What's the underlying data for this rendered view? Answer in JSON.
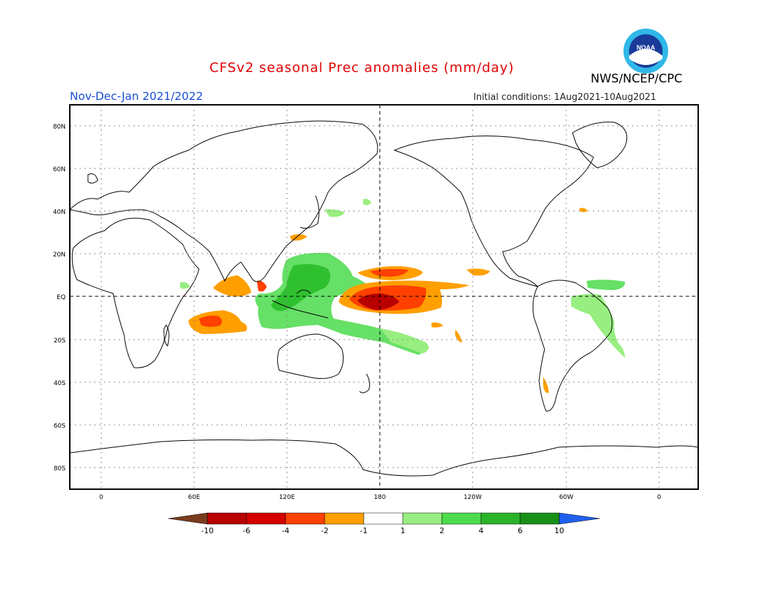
{
  "header": {
    "title": "CFSv2 seasonal Prec anomalies (mm/day)",
    "season": "Nov-Dec-Jan 2021/2022",
    "initial_conditions": "Initial conditions: 1Aug2021-10Aug2021",
    "agency": "NWS/NCEP/CPC",
    "logo_text": "NOAA"
  },
  "axes": {
    "lat_labels": [
      "80N",
      "60N",
      "40N",
      "20N",
      "EQ",
      "20S",
      "40S",
      "60S",
      "80S"
    ],
    "lon_labels": [
      "0",
      "60E",
      "120E",
      "180",
      "120W",
      "60W",
      "0"
    ]
  },
  "colorbar": {
    "labels": [
      "-10",
      "-6",
      "-4",
      "-2",
      "-1",
      "1",
      "2",
      "4",
      "6",
      "10"
    ],
    "colors": [
      "#7a3b1e",
      "#b80000",
      "#d40000",
      "#ff4000",
      "#ff9f00",
      "#ffffff",
      "#98ee80",
      "#4ddc4d",
      "#2ab42a",
      "#189018",
      "#2060ee"
    ]
  },
  "colors": {
    "title": "#e00000",
    "season": "#1a4fd6",
    "land_outline": "#000000",
    "grid": "#888888"
  }
}
